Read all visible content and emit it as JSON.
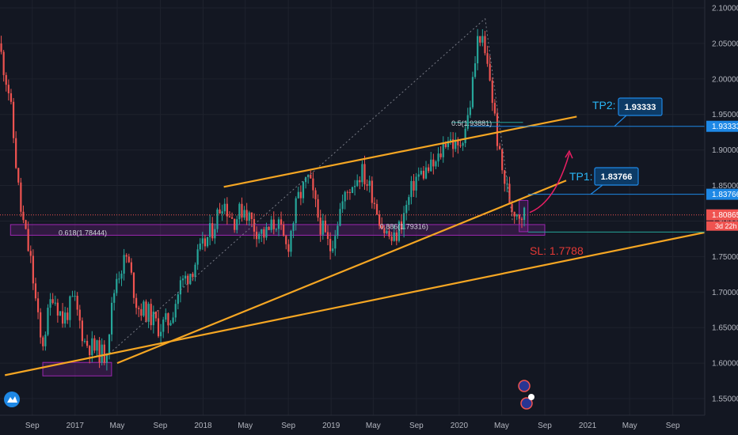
{
  "chart_data": {
    "type": "candlestick",
    "y_axis": {
      "range": [
        1.54,
        2.1
      ],
      "ticks": [
        "2.10000",
        "2.05000",
        "2.00000",
        "1.95000",
        "1.90000",
        "1.85000",
        "1.80000",
        "1.75000",
        "1.70000",
        "1.65000",
        "1.60000",
        "1.55000"
      ],
      "tick_values": [
        2.1,
        2.05,
        2.0,
        1.95,
        1.9,
        1.85,
        1.8,
        1.75,
        1.7,
        1.65,
        1.6,
        1.55
      ]
    },
    "x_axis": {
      "range": [
        "2016-06-01",
        "2021-12-01"
      ],
      "ticks": [
        {
          "label": "Sep",
          "date": "2016-09-01"
        },
        {
          "label": "2017",
          "date": "2017-01-01"
        },
        {
          "label": "May",
          "date": "2017-05-01"
        },
        {
          "label": "Sep",
          "date": "2017-09-01"
        },
        {
          "label": "2018",
          "date": "2018-01-01"
        },
        {
          "label": "May",
          "date": "2018-05-01"
        },
        {
          "label": "Sep",
          "date": "2018-09-01"
        },
        {
          "label": "2019",
          "date": "2019-01-01"
        },
        {
          "label": "May",
          "date": "2019-05-01"
        },
        {
          "label": "Sep",
          "date": "2019-09-01"
        },
        {
          "label": "2020",
          "date": "2020-01-01"
        },
        {
          "label": "May",
          "date": "2020-05-01"
        },
        {
          "label": "Sep",
          "date": "2020-09-01"
        },
        {
          "label": "2021",
          "date": "2021-01-01"
        },
        {
          "label": "May",
          "date": "2021-05-01"
        },
        {
          "label": "Sep",
          "date": "2021-09-01"
        }
      ]
    },
    "price_path": [
      [
        "2016-06-01",
        2.05
      ],
      [
        "2016-07-01",
        1.98
      ],
      [
        "2016-08-01",
        1.82
      ],
      [
        "2016-09-01",
        1.74
      ],
      [
        "2016-10-01",
        1.62
      ],
      [
        "2016-11-01",
        1.7
      ],
      [
        "2016-12-01",
        1.66
      ],
      [
        "2017-01-01",
        1.69
      ],
      [
        "2017-02-01",
        1.63
      ],
      [
        "2017-03-01",
        1.62
      ],
      [
        "2017-04-01",
        1.61
      ],
      [
        "2017-05-01",
        1.72
      ],
      [
        "2017-06-01",
        1.75
      ],
      [
        "2017-07-01",
        1.68
      ],
      [
        "2017-08-01",
        1.67
      ],
      [
        "2017-09-01",
        1.65
      ],
      [
        "2017-10-01",
        1.66
      ],
      [
        "2017-11-01",
        1.71
      ],
      [
        "2017-12-01",
        1.73
      ],
      [
        "2018-01-01",
        1.76
      ],
      [
        "2018-02-01",
        1.79
      ],
      [
        "2018-03-01",
        1.83
      ],
      [
        "2018-04-01",
        1.8
      ],
      [
        "2018-05-01",
        1.82
      ],
      [
        "2018-06-01",
        1.79
      ],
      [
        "2018-07-01",
        1.78
      ],
      [
        "2018-08-01",
        1.8
      ],
      [
        "2018-09-01",
        1.76
      ],
      [
        "2018-10-01",
        1.83
      ],
      [
        "2018-11-01",
        1.86
      ],
      [
        "2018-12-01",
        1.8
      ],
      [
        "2019-01-01",
        1.76
      ],
      [
        "2019-02-01",
        1.82
      ],
      [
        "2019-03-01",
        1.85
      ],
      [
        "2019-04-01",
        1.87
      ],
      [
        "2019-05-01",
        1.84
      ],
      [
        "2019-06-01",
        1.79
      ],
      [
        "2019-07-01",
        1.77
      ],
      [
        "2019-08-01",
        1.81
      ],
      [
        "2019-09-01",
        1.86
      ],
      [
        "2019-10-01",
        1.87
      ],
      [
        "2019-11-01",
        1.88
      ],
      [
        "2019-12-01",
        1.92
      ],
      [
        "2020-01-01",
        1.9
      ],
      [
        "2020-02-01",
        1.95
      ],
      [
        "2020-03-01",
        2.07
      ],
      [
        "2020-04-01",
        2.0
      ],
      [
        "2020-05-01",
        1.88
      ],
      [
        "2020-06-01",
        1.82
      ],
      [
        "2020-07-01",
        1.81
      ]
    ],
    "current_price": {
      "value": 1.80865,
      "label": "1.80865",
      "countdown": "3d 22h"
    },
    "levels": [
      {
        "name": "TP2",
        "label": "TP2:",
        "value": 1.93333,
        "value_label": "1.93333",
        "color": "#1e88e5"
      },
      {
        "name": "TP1",
        "label": "TP1:",
        "value": 1.83766,
        "value_label": "1.83766",
        "color": "#1e88e5"
      },
      {
        "name": "SL",
        "label": "SL: 1.7788",
        "value": 1.7788,
        "color": "#e53935"
      }
    ],
    "fib_labels": [
      {
        "text": "0.618(1.78444)",
        "value": 1.78444,
        "date": "2016-11-15"
      },
      {
        "text": "0.886(1.79316)",
        "value": 1.79316,
        "date": "2019-05-20"
      },
      {
        "text": "0.5(1.93881)",
        "value": 1.93881,
        "date": "2019-12-10"
      }
    ],
    "trendlines": [
      {
        "name": "lower-support",
        "from": [
          "2016-06-15",
          1.583
        ],
        "to": [
          "2021-12-01",
          1.784
        ]
      },
      {
        "name": "rising-support",
        "from": [
          "2017-05-01",
          1.6
        ],
        "to": [
          "2020-11-01",
          1.857
        ]
      },
      {
        "name": "channel-top",
        "from": [
          "2018-03-01",
          1.848
        ],
        "to": [
          "2020-12-01",
          1.947
        ]
      }
    ],
    "colors": {
      "up": "#26a69a",
      "down": "#ef5350",
      "trendline": "#f5a623",
      "level": "#1e88e5",
      "zone": "#9c27b0",
      "background": "#131722"
    }
  }
}
